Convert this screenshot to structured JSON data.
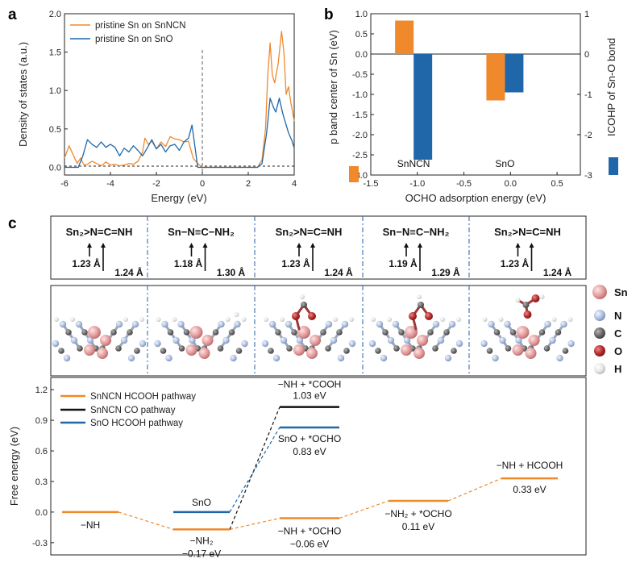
{
  "panels": {
    "a": "a",
    "b": "b",
    "c": "c"
  },
  "colors": {
    "orange": "#F0892C",
    "blue": "#1F67A8",
    "black": "#111111"
  },
  "chart_data": [
    {
      "panel": "a",
      "type": "line",
      "xlabel": "Energy (eV)",
      "ylabel": "Density of states (a.u.)",
      "xlim": [
        -6,
        4
      ],
      "ylim": [
        -0.1,
        2.0
      ],
      "xticks": [
        "-6",
        "-4",
        "-2",
        "0",
        "2",
        "4"
      ],
      "yticks": [
        "0.0",
        "0.5",
        "1.0",
        "1.5",
        "2.0"
      ],
      "legend": "top-left",
      "series": [
        {
          "name": "pristine Sn on SnNCN",
          "color": "#F0892C",
          "x": [
            -6.0,
            -5.8,
            -5.6,
            -5.45,
            -5.3,
            -5.15,
            -5.0,
            -4.8,
            -4.6,
            -4.4,
            -4.2,
            -4.0,
            -3.8,
            -3.6,
            -3.4,
            -3.2,
            -3.0,
            -2.8,
            -2.6,
            -2.5,
            -2.35,
            -2.2,
            -2.0,
            -1.8,
            -1.6,
            -1.4,
            -1.2,
            -1.0,
            -0.8,
            -0.6,
            -0.4,
            -0.2,
            0.0,
            2.4,
            2.6,
            2.75,
            2.85,
            2.95,
            3.05,
            3.15,
            3.3,
            3.45,
            3.55,
            3.65,
            3.75,
            3.85,
            4.0
          ],
          "y": [
            0.12,
            0.28,
            0.15,
            0.05,
            0.12,
            0.03,
            0.04,
            0.08,
            0.05,
            0.02,
            0.07,
            0.03,
            0.04,
            0.02,
            0.03,
            0.05,
            0.04,
            0.08,
            0.2,
            0.38,
            0.3,
            0.34,
            0.24,
            0.33,
            0.27,
            0.4,
            0.37,
            0.36,
            0.33,
            0.34,
            0.12,
            0.05,
            0.0,
            0.0,
            0.1,
            0.5,
            1.2,
            1.62,
            1.2,
            1.1,
            1.35,
            1.77,
            1.5,
            0.95,
            1.05,
            0.85,
            0.6
          ]
        },
        {
          "name": "pristine Sn on SnO",
          "color": "#1F67A8",
          "x": [
            -6.0,
            -5.8,
            -5.6,
            -5.4,
            -5.2,
            -5.0,
            -4.8,
            -4.6,
            -4.4,
            -4.2,
            -4.0,
            -3.8,
            -3.6,
            -3.4,
            -3.2,
            -3.0,
            -2.8,
            -2.6,
            -2.4,
            -2.2,
            -2.0,
            -1.8,
            -1.6,
            -1.4,
            -1.2,
            -1.0,
            -0.8,
            -0.6,
            -0.45,
            -0.3,
            -0.2,
            0.0,
            2.4,
            2.6,
            2.8,
            2.95,
            3.1,
            3.2,
            3.35,
            3.5,
            3.6,
            3.75,
            3.9,
            4.0
          ],
          "y": [
            0.0,
            0.0,
            0.0,
            0.0,
            0.15,
            0.36,
            0.3,
            0.26,
            0.33,
            0.26,
            0.3,
            0.26,
            0.15,
            0.25,
            0.2,
            0.28,
            0.22,
            0.15,
            0.25,
            0.36,
            0.24,
            0.3,
            0.2,
            0.28,
            0.3,
            0.22,
            0.33,
            0.38,
            0.55,
            0.22,
            0.0,
            0.0,
            0.0,
            0.05,
            0.45,
            0.9,
            0.78,
            0.72,
            0.9,
            0.7,
            0.6,
            0.45,
            0.35,
            0.25
          ]
        }
      ]
    },
    {
      "panel": "b",
      "type": "bar",
      "xlabel": "OCHO adsorption energy (eV)",
      "ylabel_left": "p band center of Sn (eV)",
      "ylabel_right": "ICOHP of Sn-O bond",
      "xlim": [
        -1.5,
        0.75
      ],
      "ylim": [
        -3,
        1
      ],
      "xticks": [
        "-1.5",
        "-1.0",
        "-0.5",
        "0.0",
        "0.5"
      ],
      "yticks_left": [
        "-3.0",
        "-2.5",
        "-2.0",
        "-1.5",
        "-1.0",
        "-0.5",
        "0.0",
        "0.5",
        "1.0"
      ],
      "yticks_right": [
        "-3",
        "-2",
        "-1",
        "0",
        "1"
      ],
      "groups": [
        {
          "label": "SnNCN",
          "x": -1.04,
          "p_band_center": 0.83,
          "icohp": -2.62
        },
        {
          "label": "SnO",
          "x": -0.06,
          "p_band_center": -1.15,
          "icohp": -0.95
        }
      ]
    },
    {
      "panel": "c",
      "type": "line",
      "ylabel": "Free energy (eV)",
      "ylim": [
        -0.42,
        1.32
      ],
      "yticks": [
        "-0.3",
        "0.0",
        "0.3",
        "0.6",
        "0.9",
        "1.2"
      ],
      "legend": "top-left",
      "series": [
        {
          "name": "SnNCN HCOOH pathway",
          "color": "#F0892C",
          "steps": [
            0,
            1,
            2,
            3,
            4
          ],
          "values": [
            0.0,
            -0.17,
            -0.06,
            0.11,
            0.33
          ]
        },
        {
          "name": "SnNCN CO pathway",
          "color": "#111111",
          "steps": [
            1,
            2
          ],
          "values": [
            -0.17,
            1.03
          ]
        },
        {
          "name": "SnO HCOOH pathway",
          "color": "#1F67A8",
          "steps": [
            1,
            2
          ],
          "values": [
            0.0,
            0.83
          ]
        }
      ],
      "state_labels": [
        {
          "name": "−NH",
          "value": ""
        },
        {
          "name": "−NH₂",
          "value": "−0.17 eV"
        },
        {
          "name": "−NH + *OCHO",
          "value": "−0.06 eV"
        },
        {
          "name": "−NH₂ + *OCHO",
          "value": "0.11 eV"
        },
        {
          "name": "−NH + HCOOH",
          "value": "0.33 eV"
        },
        {
          "name": "−NH + *COOH",
          "value": "1.03 eV"
        },
        {
          "name": "SnO + *OCHO",
          "value": "0.83 eV"
        },
        {
          "name": "SnO",
          "value": ""
        }
      ]
    }
  ],
  "bond_panels": [
    {
      "formula": "Sn₂>N=C=NH",
      "len1": "1.23 Å",
      "len2": "1.24 Å"
    },
    {
      "formula": "Sn−N≡C−NH₂",
      "len1": "1.18 Å",
      "len2": "1.30 Å"
    },
    {
      "formula": "Sn₂>N=C=NH",
      "len1": "1.23 Å",
      "len2": "1.24 Å"
    },
    {
      "formula": "Sn−N≡C−NH₂",
      "len1": "1.19 Å",
      "len2": "1.29 Å"
    },
    {
      "formula": "Sn₂>N=C=NH",
      "len1": "1.23 Å",
      "len2": "1.24 Å"
    }
  ],
  "atom_legend": [
    {
      "symbol": "Sn",
      "color": "#E7A6A6"
    },
    {
      "symbol": "N",
      "color": "#B6C6E2"
    },
    {
      "symbol": "C",
      "color": "#6E6E6E"
    },
    {
      "symbol": "O",
      "color": "#B22A2A"
    },
    {
      "symbol": "H",
      "color": "#E8E8E8"
    }
  ]
}
